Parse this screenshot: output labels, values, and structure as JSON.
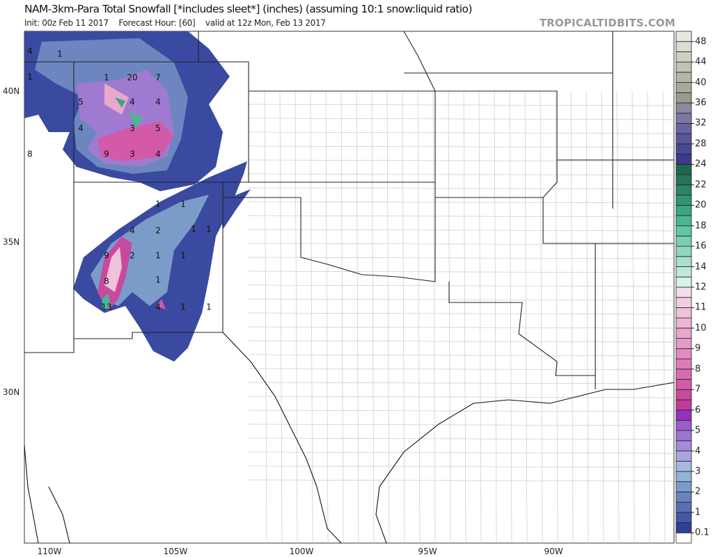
{
  "header": {
    "title": "NAM-3km-Para Total Snowfall [*includes sleet*] (inches) (assuming 10:1 snow:liquid ratio)",
    "init": "Init: 00z Feb 11 2017",
    "forecast_hour": "Forecast Hour: [60]",
    "valid": "valid at 12z Mon, Feb 13 2017",
    "brand": "TROPICALTIDBITS.COM"
  },
  "axes": {
    "lat_labels": [
      "40N",
      "35N",
      "30N"
    ],
    "lon_labels": [
      "110W",
      "105W",
      "100W",
      "95W",
      "90W"
    ]
  },
  "colorbar": {
    "labels": [
      "0.1",
      "1",
      "2",
      "3",
      "4",
      "5",
      "6",
      "7",
      "8",
      "9",
      "10",
      "11",
      "12",
      "14",
      "16",
      "18",
      "20",
      "22",
      "24",
      "28",
      "32",
      "36",
      "40",
      "44",
      "48"
    ],
    "colors": [
      "#ffffff",
      "#2f3e98",
      "#4556a6",
      "#5a6eb2",
      "#6a84bd",
      "#7b9cc8",
      "#8fb4d8",
      "#a6b8e0",
      "#a9a6dd",
      "#a48ad8",
      "#9f73d0",
      "#9a5cc9",
      "#9530c0",
      "#c03a9a",
      "#c84a9e",
      "#d25aa8",
      "#d66cb0",
      "#dc7cb8",
      "#e08cbe",
      "#e49ac6",
      "#e8a8cc",
      "#ecb6d4",
      "#f0c2da",
      "#f2cce2",
      "#f4dcec",
      "#d8f0e8",
      "#bfe8da",
      "#a8e0cc",
      "#90d8bf",
      "#78d0b0",
      "#5fc8a2",
      "#48b892",
      "#3aa684",
      "#2f9474",
      "#2a8466",
      "#24745a",
      "#1f664e",
      "#3c3a8c",
      "#4a4890",
      "#58569a",
      "#6664a2",
      "#7a78a4",
      "#8a8a9e",
      "#9a9a90",
      "#a8a89a",
      "#b4b4a8",
      "#c2c2b6",
      "#cfcfc4",
      "#dcdcd2",
      "#e8e8e0"
    ]
  },
  "snow_labels": [
    "4",
    "1",
    "1",
    "1",
    "20",
    "7",
    "5",
    "4",
    "4",
    "4",
    "3",
    "5",
    "8",
    "9",
    "3",
    "4",
    "1",
    "1",
    "4",
    "2",
    "1",
    "1",
    "9",
    "2",
    "1",
    "1",
    "8",
    "1",
    "13",
    "4",
    "1",
    "1"
  ]
}
